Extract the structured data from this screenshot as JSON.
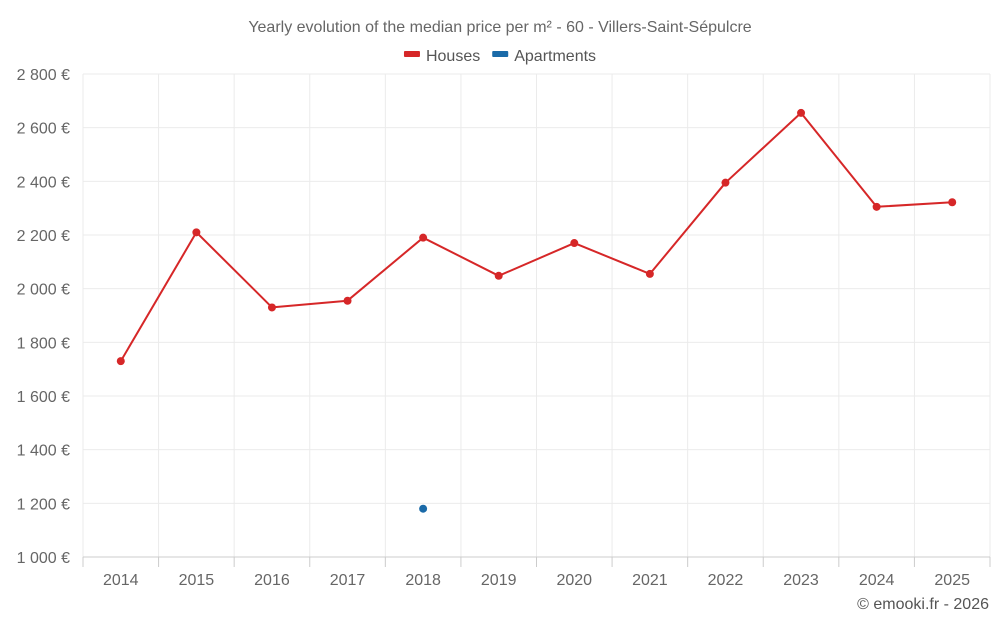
{
  "chart_data": {
    "type": "line",
    "title": "Yearly evolution of the median price per m² - 60 - Villers-Saint-Sépulcre",
    "x": [
      "2014",
      "2015",
      "2016",
      "2017",
      "2018",
      "2019",
      "2020",
      "2021",
      "2022",
      "2023",
      "2024",
      "2025"
    ],
    "ylim": [
      1000,
      2800
    ],
    "yticks": [
      1000,
      1200,
      1400,
      1600,
      1800,
      2000,
      2200,
      2400,
      2600,
      2800
    ],
    "ytick_labels": [
      "1 000 €",
      "1 200 €",
      "1 400 €",
      "1 600 €",
      "1 800 €",
      "2 000 €",
      "2 200 €",
      "2 400 €",
      "2 600 €",
      "2 800 €"
    ],
    "grid": true,
    "legend_position": "top-center",
    "series": [
      {
        "name": "Houses",
        "color": "#d62728",
        "values": [
          1730,
          2210,
          1930,
          1955,
          2190,
          2048,
          2170,
          2055,
          2395,
          2655,
          2305,
          2322
        ]
      },
      {
        "name": "Apartments",
        "color": "#1a6aa8",
        "values": [
          null,
          null,
          null,
          null,
          1180,
          null,
          null,
          null,
          null,
          null,
          null,
          null
        ]
      }
    ]
  },
  "credit": "© emooki.fr - 2026"
}
